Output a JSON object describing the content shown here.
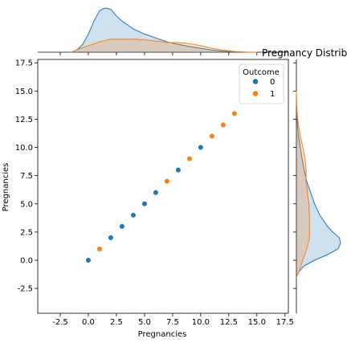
{
  "chart_data": {
    "type": "scatter",
    "title": "Pregnancy Distrib",
    "xlabel": "Pregnancies",
    "ylabel": "Pregnancies",
    "xlim": [
      -4.5,
      17.8
    ],
    "ylim": [
      -4.7,
      17.8
    ],
    "xticks": [
      -2.5,
      0.0,
      2.5,
      5.0,
      7.5,
      10.0,
      12.5,
      15.0,
      17.5
    ],
    "yticks": [
      -2.5,
      0.0,
      2.5,
      5.0,
      7.5,
      10.0,
      12.5,
      15.0,
      17.5
    ],
    "grid": false,
    "legend": {
      "title": "Outcome",
      "placement": "top-right",
      "entries": [
        {
          "label": "0",
          "color": "#1f77b4"
        },
        {
          "label": "1",
          "color": "#ff7f0e"
        }
      ]
    },
    "series": [
      {
        "name": "0",
        "color": "#1f77b4",
        "x": [
          0,
          2,
          3,
          4,
          5,
          6,
          8,
          10
        ],
        "y": [
          0,
          2,
          3,
          4,
          5,
          6,
          8,
          10
        ]
      },
      {
        "name": "1",
        "color": "#ff7f0e",
        "x": [
          1,
          7,
          9,
          11,
          12,
          13
        ],
        "y": [
          1,
          7,
          9,
          11,
          12,
          13
        ]
      }
    ],
    "marginal_density": {
      "x": [
        {
          "name": "0",
          "color": "#1f77b4",
          "points": [
            [
              -1.5,
              0
            ],
            [
              -1,
              0.01
            ],
            [
              -0.5,
              0.03
            ],
            [
              0,
              0.07
            ],
            [
              0.5,
              0.12
            ],
            [
              1,
              0.16
            ],
            [
              1.5,
              0.17
            ],
            [
              2,
              0.165
            ],
            [
              2.5,
              0.14
            ],
            [
              3,
              0.12
            ],
            [
              3.5,
              0.105
            ],
            [
              4,
              0.09
            ],
            [
              5,
              0.07
            ],
            [
              6,
              0.055
            ],
            [
              7,
              0.04
            ],
            [
              8,
              0.03
            ],
            [
              9,
              0.022
            ],
            [
              10,
              0.015
            ],
            [
              11,
              0.008
            ],
            [
              12,
              0.004
            ],
            [
              13,
              0.002
            ],
            [
              14,
              0
            ]
          ]
        },
        {
          "name": "1",
          "color": "#ff7f0e",
          "points": [
            [
              -1.5,
              0
            ],
            [
              -1,
              0.01
            ],
            [
              0,
              0.025
            ],
            [
              1,
              0.04
            ],
            [
              2,
              0.05
            ],
            [
              3,
              0.05
            ],
            [
              4,
              0.05
            ],
            [
              5,
              0.048
            ],
            [
              6,
              0.043
            ],
            [
              7,
              0.037
            ],
            [
              8,
              0.037
            ],
            [
              9,
              0.033
            ],
            [
              10,
              0.025
            ],
            [
              11,
              0.015
            ],
            [
              12,
              0.008
            ],
            [
              13,
              0.003
            ],
            [
              14,
              0.001
            ],
            [
              15,
              0
            ]
          ]
        }
      ],
      "y": [
        {
          "name": "0",
          "color": "#1f77b4",
          "points": [
            [
              -1.5,
              0
            ],
            [
              -1,
              0.01
            ],
            [
              -0.5,
              0.03
            ],
            [
              0,
              0.07
            ],
            [
              0.5,
              0.12
            ],
            [
              1,
              0.16
            ],
            [
              1.5,
              0.17
            ],
            [
              2,
              0.165
            ],
            [
              2.5,
              0.14
            ],
            [
              3,
              0.12
            ],
            [
              3.5,
              0.105
            ],
            [
              4,
              0.09
            ],
            [
              5,
              0.07
            ],
            [
              6,
              0.055
            ],
            [
              7,
              0.04
            ],
            [
              8,
              0.03
            ],
            [
              9,
              0.022
            ],
            [
              10,
              0.015
            ],
            [
              11,
              0.008
            ],
            [
              12,
              0.004
            ],
            [
              13,
              0.002
            ],
            [
              14,
              0
            ]
          ]
        },
        {
          "name": "1",
          "color": "#ff7f0e",
          "points": [
            [
              -1.5,
              0
            ],
            [
              -1,
              0.01
            ],
            [
              0,
              0.025
            ],
            [
              1,
              0.04
            ],
            [
              2,
              0.05
            ],
            [
              3,
              0.05
            ],
            [
              4,
              0.05
            ],
            [
              5,
              0.048
            ],
            [
              6,
              0.043
            ],
            [
              7,
              0.037
            ],
            [
              8,
              0.037
            ],
            [
              9,
              0.033
            ],
            [
              10,
              0.025
            ],
            [
              11,
              0.015
            ],
            [
              12,
              0.008
            ],
            [
              13,
              0.003
            ],
            [
              14,
              0.001
            ],
            [
              15,
              0
            ]
          ]
        }
      ]
    }
  }
}
